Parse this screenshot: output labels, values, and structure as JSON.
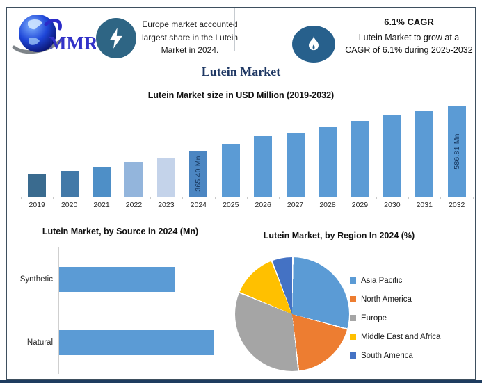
{
  "header": {
    "logo": {
      "text": "MMR"
    },
    "callout_left": {
      "lines": [
        "Europe market accounted",
        "largest share in the Lutein",
        "Market in 2024."
      ]
    },
    "callout_right": {
      "title": "6.1% CAGR",
      "lines": [
        "Lutein Market to grow at a",
        "CAGR of 6.1% during 2025-2032"
      ]
    }
  },
  "page_title": "Lutein Market",
  "colors": {
    "navy": "#1F3864",
    "bar_blue": "#5B9BD5",
    "lightning_badge": "#2E6584",
    "flame_badge": "#27608C",
    "bottom_rule": "#1E3C5F"
  },
  "chart_data": [
    {
      "type": "bar",
      "title": "Lutein Market size in USD Million (2019-2032)",
      "categories": [
        "2019",
        "2020",
        "2021",
        "2022",
        "2023",
        "2024",
        "2025",
        "2026",
        "2027",
        "2028",
        "2029",
        "2030",
        "2031",
        "2032"
      ],
      "values": [
        247,
        264,
        285,
        310,
        331,
        365.4,
        398,
        441,
        454,
        482,
        512,
        541,
        561,
        586.81
      ],
      "bar_labels": [
        "",
        "",
        "",
        "",
        "",
        "365.40 Mn",
        "",
        "",
        "",
        "",
        "",
        "",
        "",
        "586.81 Mn"
      ],
      "bar_colors": [
        "#3A6B8F",
        "#4279A8",
        "#4E8FC7",
        "#93B5DC",
        "#C4D3EA",
        "#4C86C2",
        "#5B9BD5",
        "#5B9BD5",
        "#5B9BD5",
        "#5B9BD5",
        "#5B9BD5",
        "#5B9BD5",
        "#5B9BD5",
        "#5B9BD5"
      ],
      "ylim": [
        135,
        600
      ],
      "grid": false,
      "values_note": "Only the 2024 (365.40 Mn) and 2032 (586.81 Mn) bars carry data labels; other values estimated from bar heights."
    },
    {
      "type": "bar",
      "orientation": "horizontal",
      "title": "Lutein Market, by Source in 2024 (Mn)",
      "categories": [
        "Synthetic",
        "Natural"
      ],
      "values": [
        156,
        209
      ],
      "xlim": [
        0,
        234
      ],
      "bar_color": "#5B9BD5",
      "grid": false,
      "values_note": "No numeric labels shown; bar lengths estimated (Natural ≈ 1.34× Synthetic)."
    },
    {
      "type": "pie",
      "title": "Lutein Market, by Region In 2024 (%)",
      "slices": [
        {
          "label": "Asia Pacific",
          "value": 29,
          "color": "#5B9BD5"
        },
        {
          "label": "North America",
          "value": 19,
          "color": "#ED7D31"
        },
        {
          "label": "Europe",
          "value": 33,
          "color": "#A5A5A5"
        },
        {
          "label": "Middle East and Africa",
          "value": 13,
          "color": "#FFC000"
        },
        {
          "label": "South America",
          "value": 6,
          "color": "#4472C4"
        }
      ],
      "start_angle_deg": 0,
      "legend_position": "right",
      "values_note": "Slice percentages estimated from arc angles; no data labels shown."
    }
  ]
}
